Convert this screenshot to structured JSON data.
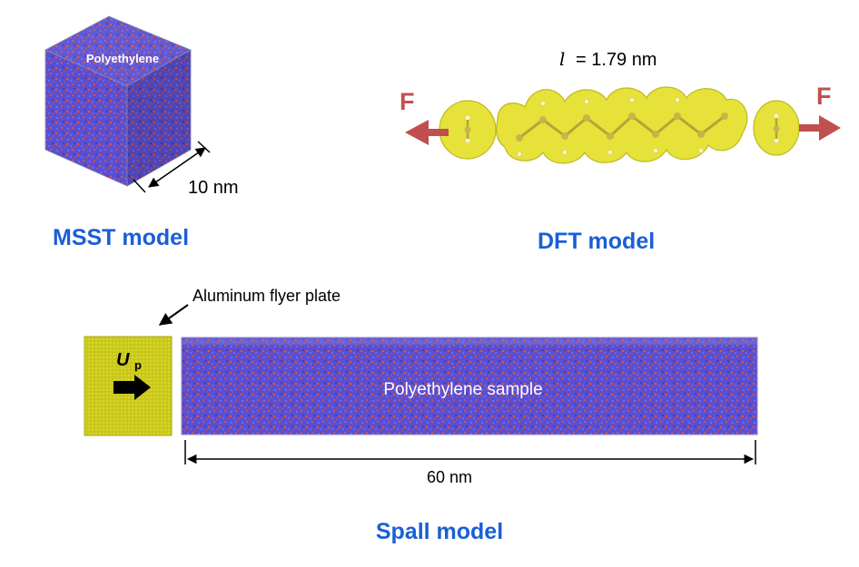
{
  "msst": {
    "label": "MSST model",
    "cube_label": "Polyethylene",
    "dimension": "10 nm"
  },
  "dft": {
    "label": "DFT model",
    "length_symbol": "l",
    "length_value": "= 1.79 nm",
    "force_left": "F",
    "force_right": "F"
  },
  "spall": {
    "label": "Spall model",
    "flyer_label": "Aluminum flyer plate",
    "velocity_symbol": "U",
    "velocity_subscript": "p",
    "sample_label": "Polyethylene sample",
    "dimension": "60 nm"
  },
  "colors": {
    "title_blue": "#1a5fd6",
    "polymer_blue": "#5a4fd0",
    "polymer_red": "#e0513c",
    "aluminum_yellow": "#c9c81a",
    "force_red": "#c0504d",
    "density_yellow": "#e6e23a"
  }
}
